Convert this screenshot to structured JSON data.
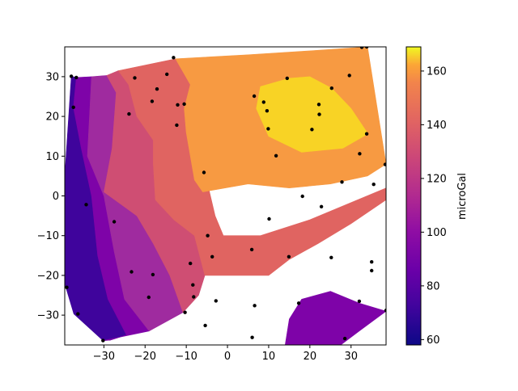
{
  "chart_data": {
    "type": "contour",
    "title": "",
    "xlabel": "",
    "ylabel": "",
    "xlim": [
      -39.5,
      38.5
    ],
    "ylim": [
      -37.5,
      37.5
    ],
    "xticks": [
      -30,
      -20,
      -10,
      0,
      10,
      20,
      30
    ],
    "yticks": [
      -30,
      -20,
      -10,
      0,
      10,
      20,
      30
    ],
    "colorbar": {
      "label": "microGal",
      "range": [
        58,
        169
      ],
      "ticks": [
        60,
        80,
        100,
        120,
        140,
        160
      ]
    },
    "levels": [
      {
        "value": 70,
        "color": "#3f049c"
      },
      {
        "value": 85,
        "color": "#7e03a8"
      },
      {
        "value": 100,
        "color": "#9f2b9f"
      },
      {
        "value": 115,
        "color": "#cf4e73"
      },
      {
        "value": 130,
        "color": "#e06461"
      },
      {
        "value": 145,
        "color": "#f79a42"
      },
      {
        "value": 160,
        "color": "#f8d325"
      }
    ],
    "regions": [
      {
        "level": 70,
        "polygon": [
          [
            -37.9,
            30.1
          ],
          [
            -36.7,
            29.8
          ],
          [
            -37.4,
            22.3
          ],
          [
            -35.5,
            12
          ],
          [
            -33,
            0
          ],
          [
            -31.5,
            -15
          ],
          [
            -29,
            -26
          ],
          [
            -24.5,
            -35
          ],
          [
            -28.5,
            -36.3
          ],
          [
            -30.2,
            -36.4
          ],
          [
            -37.3,
            -29.7
          ],
          [
            -39.5,
            -22.1
          ],
          [
            -39.5,
            5
          ]
        ]
      },
      {
        "level": 85,
        "polygon": [
          [
            -36.7,
            29.8
          ],
          [
            -33,
            30
          ],
          [
            -34,
            10
          ],
          [
            -30,
            0
          ],
          [
            -27.5,
            -14
          ],
          [
            -25,
            -26
          ],
          [
            -19,
            -34
          ],
          [
            -30.2,
            -36.4
          ],
          [
            -28.5,
            -36.3
          ],
          [
            -24.5,
            -35
          ],
          [
            -29,
            -26
          ],
          [
            -31.5,
            -15
          ],
          [
            -33,
            0
          ],
          [
            -35.5,
            12
          ],
          [
            -37.4,
            22.3
          ]
        ]
      },
      {
        "level": 100,
        "polygon": [
          [
            -33,
            30
          ],
          [
            -29.3,
            30.3
          ],
          [
            -27,
            26
          ],
          [
            -28,
            12
          ],
          [
            -30,
            1
          ],
          [
            -22,
            -5
          ],
          [
            -18,
            -12
          ],
          [
            -14,
            -20
          ],
          [
            -10.8,
            -29.3
          ],
          [
            -19,
            -34
          ],
          [
            -25,
            -26
          ],
          [
            -27.5,
            -14
          ],
          [
            -30,
            0
          ],
          [
            -34,
            10
          ]
        ]
      },
      {
        "level": 115,
        "polygon": [
          [
            -29.3,
            30.3
          ],
          [
            -26.5,
            31.5
          ],
          [
            -24,
            28
          ],
          [
            -22,
            20
          ],
          [
            -18,
            14
          ],
          [
            -18,
            8
          ],
          [
            -17.5,
            -1
          ],
          [
            -13,
            -6
          ],
          [
            -8,
            -10
          ],
          [
            -5.5,
            -20
          ],
          [
            -7,
            -25
          ],
          [
            -10.8,
            -29.3
          ],
          [
            -14,
            -20
          ],
          [
            -18,
            -12
          ],
          [
            -22,
            -5
          ],
          [
            -30,
            1
          ],
          [
            -28,
            12
          ],
          [
            -27,
            26
          ]
        ]
      },
      {
        "level": 130,
        "polygon": [
          [
            -26.5,
            31.5
          ],
          [
            -12.6,
            34.5
          ],
          [
            -8,
            28
          ],
          [
            -6,
            22
          ],
          [
            -5,
            15
          ],
          [
            -5.5,
            6
          ],
          [
            -3,
            -5
          ],
          [
            -1,
            -10
          ],
          [
            8,
            -10
          ],
          [
            20,
            -6
          ],
          [
            38.5,
            2
          ],
          [
            38.5,
            -1
          ],
          [
            30,
            -7
          ],
          [
            22,
            -12
          ],
          [
            15,
            -16
          ],
          [
            10,
            -20
          ],
          [
            -3.5,
            -20
          ],
          [
            -5.5,
            -20
          ],
          [
            -8,
            -10
          ],
          [
            -13,
            -6
          ],
          [
            -17.5,
            -1
          ],
          [
            -18,
            8
          ],
          [
            -18,
            14
          ],
          [
            -22,
            20
          ],
          [
            -24,
            28
          ]
        ]
      },
      {
        "level": 145,
        "polygon": [
          [
            -12.6,
            34.5
          ],
          [
            5,
            35.5
          ],
          [
            20,
            36.5
          ],
          [
            34,
            37.5
          ],
          [
            38.5,
            8
          ],
          [
            34,
            5
          ],
          [
            25,
            3
          ],
          [
            15,
            2
          ],
          [
            5,
            3
          ],
          [
            -6,
            1
          ],
          [
            -8,
            4
          ],
          [
            -9,
            10
          ],
          [
            -10,
            16
          ],
          [
            -10.5,
            22
          ],
          [
            -9,
            28
          ]
        ]
      },
      {
        "level": 160,
        "polygon": [
          [
            8,
            27.5
          ],
          [
            15,
            29.6
          ],
          [
            20,
            30
          ],
          [
            25.3,
            27.1
          ],
          [
            30,
            22
          ],
          [
            34.1,
            15.6
          ],
          [
            28,
            12
          ],
          [
            18,
            11
          ],
          [
            10,
            15
          ],
          [
            7,
            22
          ]
        ]
      },
      {
        "level": 85,
        "polygon": [
          [
            14,
            -37.5
          ],
          [
            15,
            -31
          ],
          [
            18,
            -26
          ],
          [
            25,
            -24
          ],
          [
            32,
            -27
          ],
          [
            38.5,
            -29
          ],
          [
            32,
            -34
          ],
          [
            27.5,
            -37.5
          ]
        ]
      }
    ],
    "points": [
      [
        -37.9,
        30.1
      ],
      [
        -36.7,
        29.8
      ],
      [
        -37.4,
        22.3
      ],
      [
        -34.3,
        -2.2
      ],
      [
        -39,
        -23
      ],
      [
        -36.3,
        -29.7
      ],
      [
        -30.2,
        -36.4
      ],
      [
        -27.5,
        -6.5
      ],
      [
        -23.9,
        20.6
      ],
      [
        -22.5,
        29.7
      ],
      [
        -18.3,
        23.8
      ],
      [
        -17.1,
        26.9
      ],
      [
        -14.7,
        30.6
      ],
      [
        -13.1,
        34.8
      ],
      [
        -12.1,
        22.9
      ],
      [
        -12.3,
        17.8
      ],
      [
        -10.5,
        23.1
      ],
      [
        -23.3,
        -19.1
      ],
      [
        -19.1,
        -25.5
      ],
      [
        -18.1,
        -19.8
      ],
      [
        -9,
        -17
      ],
      [
        -8.4,
        -22.4
      ],
      [
        -8.2,
        -25.4
      ],
      [
        -10.3,
        -29.3
      ],
      [
        -5.7,
        5.9
      ],
      [
        -4.8,
        -10
      ],
      [
        -3.7,
        -15.3
      ],
      [
        -5.4,
        -32.6
      ],
      [
        -2.8,
        -26.4
      ],
      [
        5.9,
        -13.5
      ],
      [
        6.5,
        25.1
      ],
      [
        6.6,
        -27.6
      ],
      [
        6,
        -35.6
      ],
      [
        8.8,
        23.6
      ],
      [
        9.6,
        21.4
      ],
      [
        9.9,
        16.9
      ],
      [
        10.1,
        -5.8
      ],
      [
        11.8,
        10.1
      ],
      [
        14.5,
        29.6
      ],
      [
        14.9,
        -15.3
      ],
      [
        17.3,
        -27
      ],
      [
        18.2,
        -0.1
      ],
      [
        20.5,
        16.7
      ],
      [
        22.2,
        23
      ],
      [
        22.3,
        20.5
      ],
      [
        22.8,
        -2.7
      ],
      [
        25.3,
        27.1
      ],
      [
        25.2,
        -15.5
      ],
      [
        27.8,
        3.5
      ],
      [
        28.5,
        -35.9
      ],
      [
        29.6,
        30.3
      ],
      [
        32.1,
        10.6
      ],
      [
        32,
        -26.5
      ],
      [
        32.6,
        37.4
      ],
      [
        33.8,
        15.6
      ],
      [
        33.8,
        37.5
      ],
      [
        35,
        -16.6
      ],
      [
        35,
        -18.8
      ],
      [
        35.5,
        2.9
      ],
      [
        38.3,
        7.9
      ],
      [
        38.5,
        -28.8
      ]
    ]
  }
}
